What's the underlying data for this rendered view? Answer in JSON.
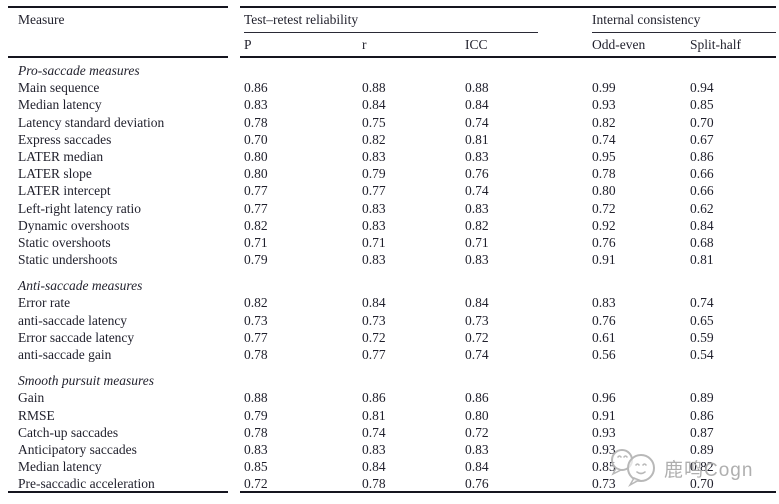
{
  "table": {
    "header": {
      "measure_label": "Measure",
      "group1_label": "Test–retest reliability",
      "group2_label": "Internal consistency",
      "subheaders": [
        "P",
        "r",
        "ICC",
        "Odd-even",
        "Split-half"
      ]
    },
    "sections": [
      {
        "title": "Pro-saccade measures",
        "rows": [
          {
            "measure": "Main sequence",
            "values": [
              "0.86",
              "0.88",
              "0.88",
              "0.99",
              "0.94"
            ]
          },
          {
            "measure": "Median latency",
            "values": [
              "0.83",
              "0.84",
              "0.84",
              "0.93",
              "0.85"
            ]
          },
          {
            "measure": "Latency standard deviation",
            "values": [
              "0.78",
              "0.75",
              "0.74",
              "0.82",
              "0.70"
            ]
          },
          {
            "measure": "Express saccades",
            "values": [
              "0.70",
              "0.82",
              "0.81",
              "0.74",
              "0.67"
            ]
          },
          {
            "measure": "LATER median",
            "values": [
              "0.80",
              "0.83",
              "0.83",
              "0.95",
              "0.86"
            ]
          },
          {
            "measure": "LATER slope",
            "values": [
              "0.80",
              "0.79",
              "0.76",
              "0.78",
              "0.66"
            ]
          },
          {
            "measure": "LATER intercept",
            "values": [
              "0.77",
              "0.77",
              "0.74",
              "0.80",
              "0.66"
            ]
          },
          {
            "measure": "Left-right latency ratio",
            "values": [
              "0.77",
              "0.83",
              "0.83",
              "0.72",
              "0.62"
            ]
          },
          {
            "measure": "Dynamic overshoots",
            "values": [
              "0.82",
              "0.83",
              "0.82",
              "0.92",
              "0.84"
            ]
          },
          {
            "measure": "Static overshoots",
            "values": [
              "0.71",
              "0.71",
              "0.71",
              "0.76",
              "0.68"
            ]
          },
          {
            "measure": "Static undershoots",
            "values": [
              "0.79",
              "0.83",
              "0.83",
              "0.91",
              "0.81"
            ]
          }
        ]
      },
      {
        "title": "Anti-saccade measures",
        "rows": [
          {
            "measure": "Error rate",
            "values": [
              "0.82",
              "0.84",
              "0.84",
              "0.83",
              "0.74"
            ]
          },
          {
            "measure": "anti-saccade latency",
            "values": [
              "0.73",
              "0.73",
              "0.73",
              "0.76",
              "0.65"
            ]
          },
          {
            "measure": "Error saccade latency",
            "values": [
              "0.77",
              "0.72",
              "0.72",
              "0.61",
              "0.59"
            ]
          },
          {
            "measure": "anti-saccade gain",
            "values": [
              "0.78",
              "0.77",
              "0.74",
              "0.56",
              "0.54"
            ]
          }
        ]
      },
      {
        "title": "Smooth pursuit measures",
        "rows": [
          {
            "measure": "Gain",
            "values": [
              "0.88",
              "0.86",
              "0.86",
              "0.96",
              "0.89"
            ]
          },
          {
            "measure": "RMSE",
            "values": [
              "0.79",
              "0.81",
              "0.80",
              "0.91",
              "0.86"
            ]
          },
          {
            "measure": "Catch-up saccades",
            "values": [
              "0.78",
              "0.74",
              "0.72",
              "0.93",
              "0.87"
            ]
          },
          {
            "measure": "Anticipatory saccades",
            "values": [
              "0.83",
              "0.83",
              "0.83",
              "0.93",
              "0.89"
            ]
          },
          {
            "measure": "Median latency",
            "values": [
              "0.85",
              "0.84",
              "0.84",
              "0.85",
              "0.82"
            ]
          },
          {
            "measure": "Pre-saccadic acceleration",
            "values": [
              "0.72",
              "0.78",
              "0.76",
              "0.73",
              "0.70"
            ]
          }
        ]
      }
    ]
  },
  "watermark": {
    "text": "鹿鸣Cogn",
    "icon": "wechat-chat-bubbles-icon",
    "color": "#a9a9a9"
  },
  "colors": {
    "text": "#1f1f2b",
    "rule": "#15151f",
    "background": "#ffffff"
  }
}
